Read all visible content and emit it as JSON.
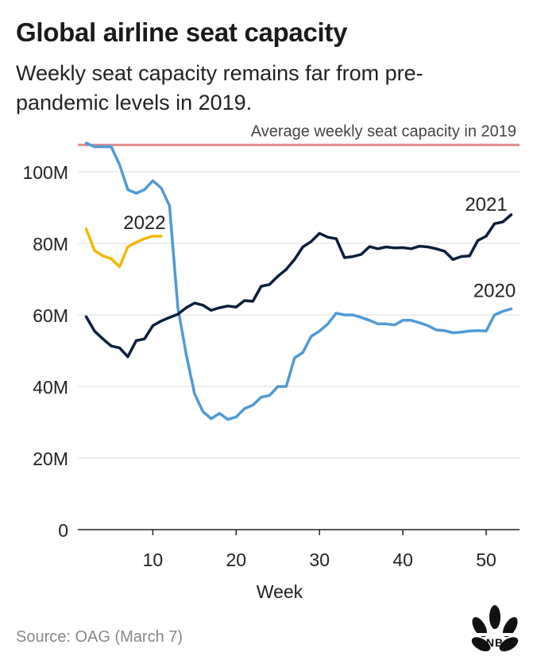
{
  "title": "Global airline seat capacity",
  "subtitle": "Weekly seat capacity remains far from pre-pandemic levels in 2019.",
  "source": "Source: OAG (March 7)",
  "logo_text": "CNBC",
  "colors": {
    "s2020": "#4f9ad6",
    "s2021": "#0c1e3c",
    "s2022": "#f5b800",
    "reference": "#e08a8a",
    "grid": "#dddddd",
    "axis": "#222222",
    "text": "#222222"
  },
  "chart_data": {
    "type": "line",
    "title": "Global airline seat capacity",
    "xlabel": "Week",
    "ylabel": "",
    "xlim": [
      1,
      54
    ],
    "ylim": [
      0,
      108
    ],
    "x_ticks": [
      10,
      20,
      30,
      40,
      50
    ],
    "y_ticks": [
      0,
      20,
      40,
      60,
      80,
      100
    ],
    "y_tick_labels": [
      "0",
      "20M",
      "40M",
      "60M",
      "80M",
      "100M"
    ],
    "reference_line": {
      "value": 107.5,
      "label": "Average weekly seat capacity in 2019"
    },
    "series": [
      {
        "name": "2020",
        "label": "2020",
        "x": [
          2,
          3,
          4,
          5,
          6,
          7,
          8,
          9,
          10,
          11,
          12,
          13,
          14,
          15,
          16,
          17,
          18,
          19,
          20,
          21,
          22,
          23,
          24,
          25,
          26,
          27,
          28,
          29,
          30,
          31,
          32,
          33,
          34,
          35,
          36,
          37,
          38,
          39,
          40,
          41,
          42,
          43,
          44,
          45,
          46,
          47,
          48,
          49,
          50,
          51,
          52,
          53
        ],
        "values": [
          108,
          107,
          107,
          107,
          102,
          95,
          94,
          95,
          97.5,
          95.5,
          90.5,
          62,
          49,
          38,
          33,
          31,
          32.5,
          30.8,
          31.5,
          33.8,
          34.8,
          37,
          37.5,
          40,
          40,
          48,
          49.5,
          54,
          55.5,
          57.5,
          60.5,
          60,
          60,
          59.3,
          58.5,
          57.5,
          57.5,
          57.2,
          58.5,
          58.5,
          57.8,
          57,
          55.8,
          55.6,
          55,
          55.2,
          55.5,
          55.6,
          55.5,
          60,
          61,
          61.7
        ]
      },
      {
        "name": "2021",
        "label": "2021",
        "x": [
          2,
          3,
          4,
          5,
          6,
          7,
          8,
          9,
          10,
          11,
          12,
          13,
          14,
          15,
          16,
          17,
          18,
          19,
          20,
          21,
          22,
          23,
          24,
          25,
          26,
          27,
          28,
          29,
          30,
          31,
          32,
          33,
          34,
          35,
          36,
          37,
          38,
          39,
          40,
          41,
          42,
          43,
          44,
          45,
          46,
          47,
          48,
          49,
          50,
          51,
          52,
          53
        ],
        "values": [
          59.5,
          55.5,
          53.3,
          51.3,
          50.8,
          48.3,
          52.8,
          53.3,
          57,
          58.3,
          59.3,
          60.2,
          62,
          63.3,
          62.7,
          61.3,
          62,
          62.5,
          62.2,
          64,
          63.8,
          68,
          68.5,
          70.8,
          72.7,
          75.5,
          79,
          80.5,
          82.8,
          81.7,
          81.3,
          76,
          76.3,
          76.9,
          79.1,
          78.5,
          79,
          78.7,
          78.8,
          78.5,
          79.2,
          79,
          78.5,
          77.8,
          75.5,
          76.3,
          76.5,
          80.8,
          82,
          85.5,
          86,
          88
        ]
      },
      {
        "name": "2022",
        "label": "2022",
        "x": [
          2,
          3,
          4,
          5,
          6,
          7,
          8,
          9,
          10,
          11
        ],
        "values": [
          84,
          78,
          76.5,
          75.7,
          73.5,
          79,
          80.3,
          81.3,
          82,
          82
        ]
      }
    ],
    "annotations": [
      {
        "text": "2022",
        "near_series": "2022"
      },
      {
        "text": "2021",
        "near_series": "2021"
      },
      {
        "text": "2020",
        "near_series": "2020"
      }
    ]
  }
}
